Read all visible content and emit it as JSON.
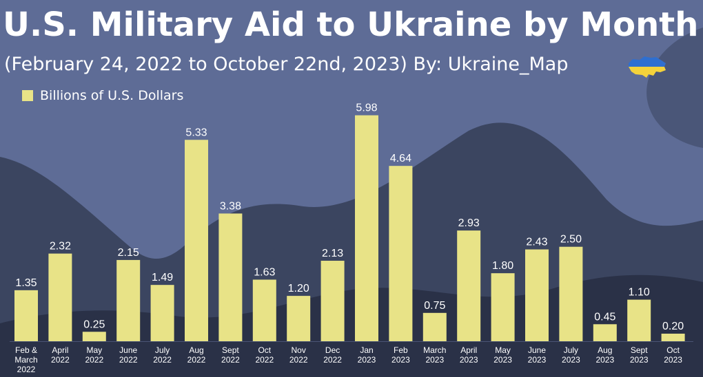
{
  "title": "U.S. Military Aid to Ukraine by Month",
  "subtitle": "(February 24, 2022 to October 22nd, 2023)  By: Ukraine_Map",
  "colors": {
    "bar": "#e8e387",
    "background_dark": "#1f2638",
    "hill_light": "#5e6c96",
    "hill_mid": "#3b4560",
    "text": "#ffffff",
    "flag_blue": "#2f6fd0",
    "flag_yellow": "#f4d23b"
  },
  "chart_data": {
    "type": "bar",
    "legend": "Billions of U.S. Dollars",
    "legend_position": "top-left",
    "grid": false,
    "ylim": [
      0,
      6.3
    ],
    "categories": [
      [
        "Feb &",
        "March",
        "2022"
      ],
      [
        "April",
        "2022"
      ],
      [
        "May",
        "2022"
      ],
      [
        "June",
        "2022"
      ],
      [
        "July",
        "2022"
      ],
      [
        "Aug",
        "2022"
      ],
      [
        "Sept",
        "2022"
      ],
      [
        "Oct",
        "2022"
      ],
      [
        "Nov",
        "2022"
      ],
      [
        "Dec",
        "2022"
      ],
      [
        "Jan",
        "2023"
      ],
      [
        "Feb",
        "2023"
      ],
      [
        "March",
        "2023"
      ],
      [
        "April",
        "2023"
      ],
      [
        "May",
        "2023"
      ],
      [
        "June",
        "2023"
      ],
      [
        "July",
        "2023"
      ],
      [
        "Aug",
        "2023"
      ],
      [
        "Sept",
        "2023"
      ],
      [
        "Oct",
        "2023"
      ]
    ],
    "values": [
      1.35,
      2.32,
      0.25,
      2.15,
      1.49,
      5.33,
      3.38,
      1.63,
      1.2,
      2.13,
      5.98,
      4.64,
      0.75,
      2.93,
      1.8,
      2.43,
      2.5,
      0.45,
      1.1,
      0.2
    ],
    "value_labels": [
      "1.35",
      "2.32",
      "0.25",
      "2.15",
      "1.49",
      "5.33",
      "3.38",
      "1.63",
      "1.20",
      "2.13",
      "5.98",
      "4.64",
      "0.75",
      "2.93",
      "1.80",
      "2.43",
      "2.50",
      "0.45",
      "1.10",
      "0.20"
    ]
  }
}
